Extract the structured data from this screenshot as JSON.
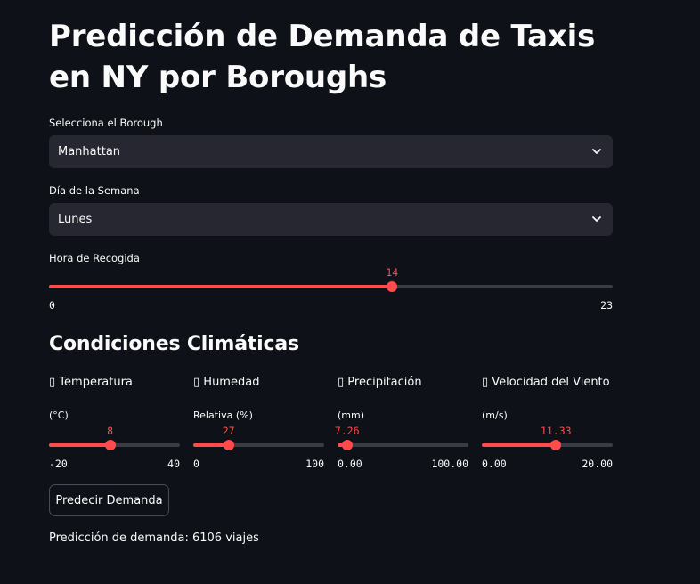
{
  "title": "Predicción de Demanda de Taxis en NY por Boroughs",
  "borough": {
    "label": "Selecciona el Borough",
    "value": "Manhattan"
  },
  "day": {
    "label": "Día de la Semana",
    "value": "Lunes"
  },
  "hour": {
    "label": "Hora de Recogida",
    "value": "14",
    "min": "0",
    "max": "23",
    "fraction": 0.6087
  },
  "climate": {
    "heading": "Condiciones Climáticas",
    "temperature": {
      "label": "Temperatura",
      "sublabel": "(°C)",
      "value": "8",
      "min": "-20",
      "max": "40",
      "fraction": 0.4667
    },
    "humidity": {
      "label": "Humedad",
      "sublabel": "Relativa (%)",
      "value": "27",
      "min": "0",
      "max": "100",
      "fraction": 0.27
    },
    "precipitation": {
      "label": "Precipitación",
      "sublabel": "(mm)",
      "value": "7.26",
      "min": "0.00",
      "max": "100.00",
      "fraction": 0.0726
    },
    "wind": {
      "label": "Velocidad del Viento",
      "sublabel": "(m/s)",
      "value": "11.33",
      "min": "0.00",
      "max": "20.00",
      "fraction": 0.5665
    }
  },
  "predict_button": "Predecir Demanda",
  "result_text": "Predicción de demanda: 6106 viajes",
  "colors": {
    "accent": "#ff4b4b",
    "background": "#0e1117",
    "input_bg": "#262730"
  }
}
